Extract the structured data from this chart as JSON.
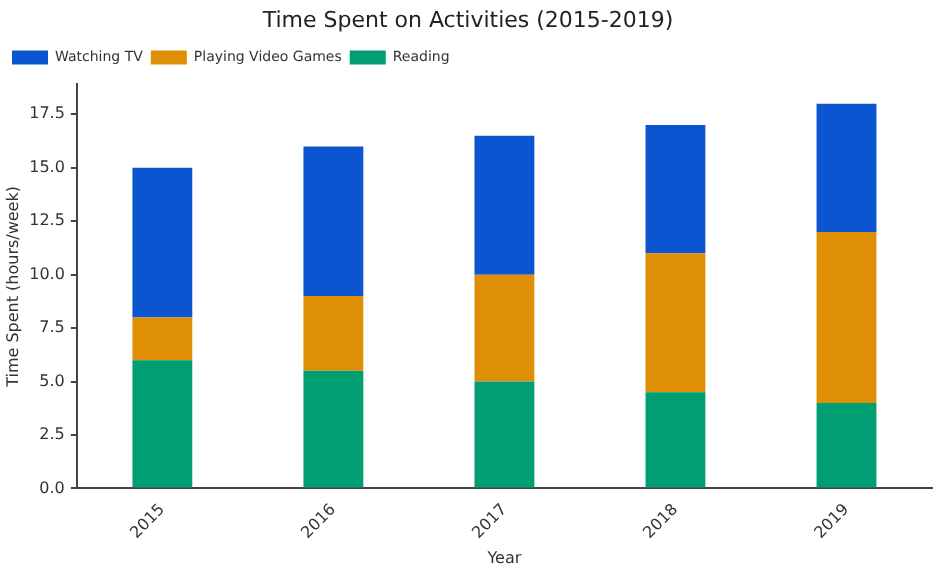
{
  "chart_data": {
    "type": "bar",
    "title": "Time Spent on Activities (2015-2019)",
    "xlabel": "Year",
    "ylabel": "Time Spent (hours/week)",
    "categories": [
      "2015",
      "2016",
      "2017",
      "2018",
      "2019"
    ],
    "series": [
      {
        "name": "Reading",
        "color": "#029e73",
        "values": [
          6,
          5.5,
          5,
          4.5,
          4
        ]
      },
      {
        "name": "Playing Video Games",
        "color": "#de8f05",
        "values": [
          2,
          3.5,
          5,
          6.5,
          8
        ]
      },
      {
        "name": "Watching TV",
        "color": "#0c55d0",
        "values": [
          7,
          7,
          6.5,
          6,
          6
        ]
      }
    ],
    "stacked": true,
    "ylim": [
      0,
      18.9
    ],
    "yticks": [
      {
        "value": 0,
        "label": "0.0"
      },
      {
        "value": 2.5,
        "label": "2.5"
      },
      {
        "value": 5,
        "label": "5.0"
      },
      {
        "value": 7.5,
        "label": "7.5"
      },
      {
        "value": 10,
        "label": "10.0"
      },
      {
        "value": 12.5,
        "label": "12.5"
      },
      {
        "value": 15,
        "label": "15.0"
      },
      {
        "value": 17.5,
        "label": "17.5"
      }
    ],
    "grid": false,
    "legend": "top left"
  }
}
